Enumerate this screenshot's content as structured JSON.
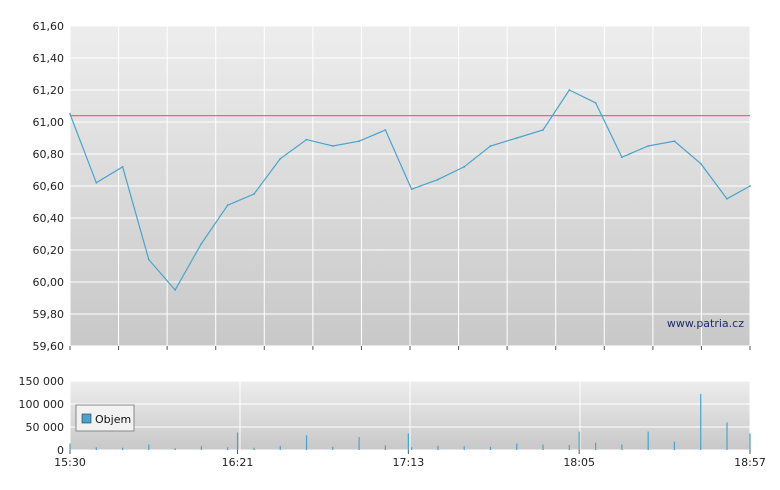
{
  "watermark": "www.patria.cz",
  "legend": {
    "label": "Objem"
  },
  "colors": {
    "price_line": "#4aa3cc",
    "reference_line": "#e86b6b",
    "volume_bar": "#4aa3cc",
    "grid": "#ffffff",
    "panel_top": "#ededed",
    "panel_bottom": "#c8c8c8"
  },
  "chart_data": [
    {
      "type": "line",
      "title": "",
      "xlabel": "",
      "ylabel": "",
      "ylim": [
        59.6,
        61.6
      ],
      "yticks": [
        "61,60",
        "61,40",
        "61,20",
        "61,00",
        "60,80",
        "60,60",
        "60,40",
        "60,20",
        "60,00",
        "59,80",
        "59,60"
      ],
      "reference_line": 61.04,
      "grid": true,
      "series": [
        {
          "x": [
            "15:30",
            "15:38",
            "15:46",
            "15:54",
            "16:02",
            "16:10",
            "16:18",
            "16:26",
            "16:34",
            "16:42",
            "16:50",
            "16:58",
            "17:06",
            "17:14",
            "17:22",
            "17:30",
            "17:38",
            "17:46",
            "17:54",
            "18:02",
            "18:10",
            "18:18",
            "18:26",
            "18:34",
            "18:42",
            "18:50",
            "18:57"
          ],
          "values": [
            61.05,
            60.62,
            60.72,
            60.14,
            59.95,
            60.24,
            60.48,
            60.55,
            60.77,
            60.89,
            60.85,
            60.88,
            60.95,
            60.58,
            60.64,
            60.72,
            60.85,
            60.9,
            60.95,
            61.2,
            61.12,
            60.78,
            60.85,
            60.88,
            60.74,
            60.52,
            60.6
          ]
        }
      ]
    },
    {
      "type": "bar",
      "title": "",
      "ylim": [
        0,
        150000
      ],
      "yticks": [
        "150 000",
        "100 000",
        "50 000",
        "0"
      ],
      "xticks": [
        "15:30",
        "16:21",
        "17:13",
        "18:05",
        "18:57"
      ],
      "grid": true,
      "series": [
        {
          "name": "Objem",
          "x": [
            "15:30",
            "15:38",
            "15:46",
            "15:54",
            "16:02",
            "16:10",
            "16:18",
            "16:21",
            "16:26",
            "16:34",
            "16:42",
            "16:50",
            "16:58",
            "17:06",
            "17:13",
            "17:14",
            "17:22",
            "17:30",
            "17:38",
            "17:46",
            "17:54",
            "18:02",
            "18:05",
            "18:10",
            "18:18",
            "18:26",
            "18:34",
            "18:42",
            "18:50",
            "18:57"
          ],
          "values": [
            14000,
            6000,
            5000,
            12000,
            4000,
            8000,
            6000,
            38000,
            5000,
            9000,
            32000,
            7000,
            28000,
            10000,
            36000,
            6000,
            9000,
            8000,
            7000,
            14000,
            12000,
            11000,
            40000,
            16000,
            12000,
            40000,
            18000,
            122000,
            60000,
            36000
          ]
        }
      ]
    }
  ]
}
